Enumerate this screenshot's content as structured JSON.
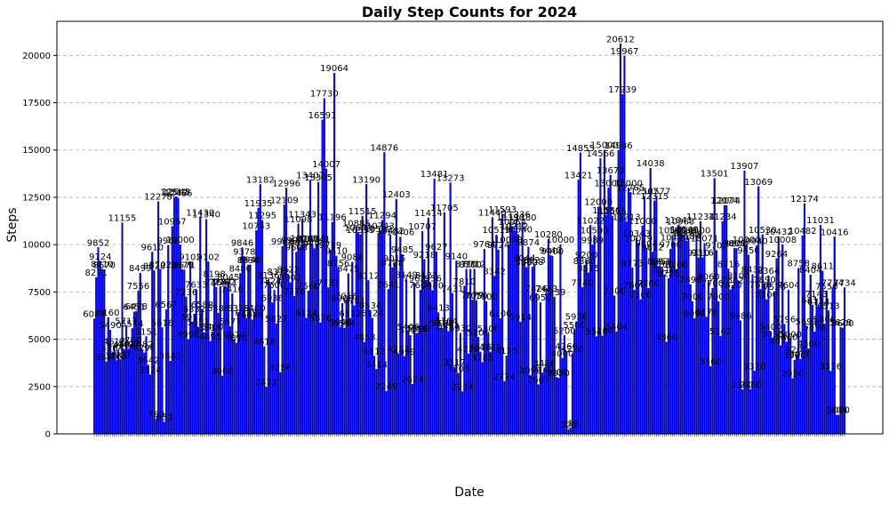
{
  "chart_data": {
    "type": "bar",
    "title": "Daily Step Counts for 2024",
    "xlabel": "Date",
    "ylabel": "Steps",
    "ylim": [
      0,
      21800
    ],
    "yticks": [
      0,
      2500,
      5000,
      7500,
      10000,
      12500,
      15000,
      17500,
      20000
    ],
    "grid": "y-dashed",
    "bar_color": "#0000ff",
    "bar_edge_color": "#00008b",
    "grid_color": "#b0b0b0",
    "values": [
      6084,
      8271,
      9852,
      9124,
      8710,
      8670,
      3810,
      6160,
      5490,
      4264,
      4617,
      3883,
      4430,
      3927,
      11155,
      4473,
      5717,
      4497,
      4700,
      5574,
      6451,
      6478,
      7556,
      8499,
      4482,
      4290,
      5151,
      3642,
      3124,
      9610,
      8628,
      780,
      12278,
      8702,
      5616,
      630,
      6567,
      9968,
      3842,
      10967,
      12512,
      12548,
      12466,
      10000,
      8679,
      8671,
      7236,
      4998,
      9102,
      5917,
      6332,
      7633,
      5651,
      11430,
      6588,
      5351,
      11340,
      9102,
      4895,
      5400,
      8198,
      7754,
      6388,
      7784,
      3066,
      7762,
      7771,
      8045,
      5677,
      7410,
      4970,
      4810,
      6379,
      8480,
      9846,
      9378,
      6125,
      8930,
      8940,
      6036,
      6400,
      10743,
      11935,
      13182,
      11295,
      4618,
      2472,
      8136,
      7824,
      6936,
      7600,
      5827,
      8312,
      3256,
      9908,
      12109,
      12996,
      8422,
      8002,
      9990,
      7276,
      9608,
      11098,
      9854,
      11343,
      10068,
      6124,
      7560,
      13407,
      10043,
      9797,
      10041,
      13305,
      5876,
      16591,
      17730,
      14007,
      7731,
      9719,
      11196,
      19064,
      9410,
      8756,
      5640,
      6900,
      5594,
      7016,
      8475,
      6112,
      9086,
      6781,
      10885,
      10643,
      10533,
      11515,
      4853,
      13190,
      8112,
      6534,
      6124,
      4113,
      3414,
      10582,
      10743,
      11294,
      14876,
      2249,
      7641,
      10482,
      8788,
      9015,
      12403,
      4231,
      10406,
      9485,
      4099,
      8149,
      5406,
      5211,
      2624,
      7962,
      5316,
      5320,
      7604,
      10707,
      9218,
      8123,
      11414,
      7956,
      7580,
      13481,
      9627,
      6413,
      5610,
      5588,
      11705,
      5704,
      5424,
      13273,
      7431,
      3517,
      9140,
      3205,
      5330,
      2234,
      7810,
      8710,
      4228,
      8700,
      7077,
      8712,
      7050,
      5106,
      4336,
      3785,
      9764,
      7000,
      5300,
      4329,
      11440,
      8342,
      10519,
      9724,
      6100,
      11593,
      2774,
      4125,
      10000,
      11190,
      10954,
      10712,
      11336,
      10540,
      5914,
      11180,
      9044,
      8800,
      9874,
      3090,
      8828,
      8923,
      7426,
      2607,
      6950,
      3230,
      3486,
      7433,
      10280,
      9440,
      9400,
      7239,
      3000,
      2950,
      10000,
      4000,
      5200,
      4360,
      220,
      310,
      4220,
      5500,
      5936,
      13421,
      14855,
      7740,
      8880,
      9200,
      8515,
      11022,
      9989,
      10500,
      5145,
      12000,
      14566,
      5184,
      15000,
      11566,
      13000,
      13678,
      11515,
      7300,
      5404,
      14986,
      20612,
      17939,
      19967,
      11213,
      13000,
      12765,
      8773,
      7600,
      10343,
      10079,
      7100,
      11000,
      12567,
      9804,
      7700,
      14038,
      9612,
      12315,
      12577,
      8853,
      8853,
      8700,
      8410,
      4860,
      8226,
      9760,
      10500,
      10120,
      8700,
      11041,
      10963,
      10500,
      10540,
      10184,
      10364,
      7890,
      7000,
      6098,
      10500,
      9310,
      11234,
      9316,
      10071,
      6178,
      8060,
      3560,
      7700,
      13501,
      9700,
      7000,
      5162,
      11234,
      12074,
      12074,
      8716,
      7620,
      7862,
      9809,
      9800,
      8100,
      5986,
      2340,
      13907,
      10000,
      9450,
      2360,
      8432,
      3320,
      9940,
      13069,
      7638,
      10530,
      7890,
      7100,
      8364,
      5400,
      5030,
      7526,
      9264,
      10432,
      4673,
      10008,
      5796,
      4860,
      7604,
      5000,
      2930,
      3900,
      4200,
      8758,
      3950,
      10482,
      12174,
      5691,
      4500,
      8404,
      6811,
      5396,
      7143,
      6714,
      11031,
      8611,
      5800,
      7550,
      6513,
      3316,
      7734,
      10416,
      1004,
      1000,
      5628,
      5600,
      7734
    ]
  }
}
